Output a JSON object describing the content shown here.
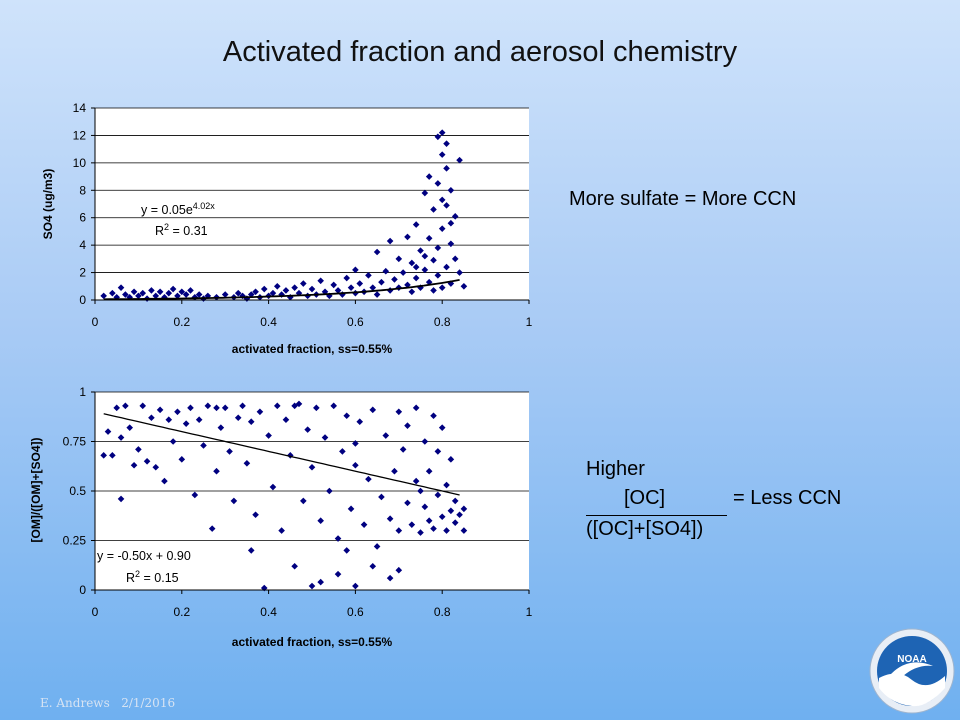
{
  "slide": {
    "title": "Activated fraction and aerosol chemistry",
    "footer_author": "E. Andrews",
    "footer_date": "2/1/2016",
    "logo_text": "NOAA"
  },
  "notes": {
    "sulfate": "More sulfate = More CCN",
    "higher": "Higher",
    "numerator": "[OC]",
    "denominator": "([OC]+[SO4])",
    "result": "= Less CCN"
  },
  "chart_data": [
    {
      "type": "scatter",
      "xlabel": "activated fraction, ss=0.55%",
      "ylabel": "SO4 (ug/m3)",
      "xlim": [
        0,
        1
      ],
      "ylim": [
        0,
        14
      ],
      "xticks": [
        "0",
        "0.2",
        "0.4",
        "0.6",
        "0.8",
        "1"
      ],
      "yticks": [
        "0",
        "2",
        "4",
        "6",
        "8",
        "10",
        "12",
        "14"
      ],
      "grid": "horizontal",
      "marker_color": "#000080",
      "trendline": {
        "kind": "exponential",
        "a": 0.05,
        "b": 4.02,
        "x_range": [
          0.02,
          0.84
        ],
        "equation_prefix": "y = 0.05e",
        "equation_exponent": "4.02x",
        "r2_prefix": "R",
        "r2_suffix": " = 0.31"
      },
      "points": [
        [
          0.02,
          0.3
        ],
        [
          0.04,
          0.5
        ],
        [
          0.05,
          0.2
        ],
        [
          0.06,
          0.9
        ],
        [
          0.07,
          0.4
        ],
        [
          0.08,
          0.2
        ],
        [
          0.09,
          0.6
        ],
        [
          0.1,
          0.3
        ],
        [
          0.11,
          0.5
        ],
        [
          0.12,
          0.1
        ],
        [
          0.13,
          0.7
        ],
        [
          0.14,
          0.3
        ],
        [
          0.15,
          0.6
        ],
        [
          0.16,
          0.2
        ],
        [
          0.17,
          0.5
        ],
        [
          0.18,
          0.8
        ],
        [
          0.19,
          0.3
        ],
        [
          0.2,
          0.6
        ],
        [
          0.21,
          0.4
        ],
        [
          0.22,
          0.7
        ],
        [
          0.23,
          0.2
        ],
        [
          0.24,
          0.4
        ],
        [
          0.25,
          0.1
        ],
        [
          0.26,
          0.3
        ],
        [
          0.28,
          0.2
        ],
        [
          0.3,
          0.4
        ],
        [
          0.32,
          0.2
        ],
        [
          0.33,
          0.5
        ],
        [
          0.34,
          0.3
        ],
        [
          0.35,
          0.1
        ],
        [
          0.36,
          0.4
        ],
        [
          0.37,
          0.6
        ],
        [
          0.38,
          0.2
        ],
        [
          0.39,
          0.8
        ],
        [
          0.4,
          0.3
        ],
        [
          0.41,
          0.5
        ],
        [
          0.42,
          1.0
        ],
        [
          0.43,
          0.4
        ],
        [
          0.44,
          0.7
        ],
        [
          0.45,
          0.2
        ],
        [
          0.46,
          0.9
        ],
        [
          0.47,
          0.5
        ],
        [
          0.48,
          1.2
        ],
        [
          0.49,
          0.3
        ],
        [
          0.5,
          0.8
        ],
        [
          0.51,
          0.4
        ],
        [
          0.52,
          1.4
        ],
        [
          0.53,
          0.6
        ],
        [
          0.54,
          0.3
        ],
        [
          0.55,
          1.1
        ],
        [
          0.56,
          0.7
        ],
        [
          0.57,
          0.4
        ],
        [
          0.58,
          1.6
        ],
        [
          0.59,
          0.9
        ],
        [
          0.6,
          0.5
        ],
        [
          0.6,
          2.2
        ],
        [
          0.61,
          1.2
        ],
        [
          0.62,
          0.6
        ],
        [
          0.63,
          1.8
        ],
        [
          0.64,
          0.9
        ],
        [
          0.65,
          0.4
        ],
        [
          0.65,
          3.5
        ],
        [
          0.66,
          1.3
        ],
        [
          0.67,
          2.1
        ],
        [
          0.68,
          0.7
        ],
        [
          0.68,
          4.3
        ],
        [
          0.69,
          1.5
        ],
        [
          0.7,
          0.9
        ],
        [
          0.7,
          3.0
        ],
        [
          0.71,
          2.0
        ],
        [
          0.72,
          1.1
        ],
        [
          0.72,
          4.6
        ],
        [
          0.73,
          0.6
        ],
        [
          0.73,
          2.7
        ],
        [
          0.74,
          1.6
        ],
        [
          0.74,
          5.5
        ],
        [
          0.75,
          0.9
        ],
        [
          0.75,
          3.6
        ],
        [
          0.76,
          2.2
        ],
        [
          0.76,
          7.8
        ],
        [
          0.77,
          1.3
        ],
        [
          0.77,
          4.5
        ],
        [
          0.77,
          9.0
        ],
        [
          0.78,
          0.7
        ],
        [
          0.78,
          2.9
        ],
        [
          0.78,
          6.6
        ],
        [
          0.79,
          1.8
        ],
        [
          0.79,
          3.8
        ],
        [
          0.79,
          8.5
        ],
        [
          0.8,
          0.9
        ],
        [
          0.8,
          5.2
        ],
        [
          0.8,
          10.6
        ],
        [
          0.8,
          12.2
        ],
        [
          0.81,
          2.4
        ],
        [
          0.81,
          6.9
        ],
        [
          0.81,
          9.6
        ],
        [
          0.82,
          1.2
        ],
        [
          0.82,
          4.1
        ],
        [
          0.82,
          8.0
        ],
        [
          0.83,
          3.0
        ],
        [
          0.83,
          6.1
        ],
        [
          0.84,
          2.0
        ],
        [
          0.84,
          10.2
        ],
        [
          0.85,
          1.0
        ],
        [
          0.81,
          11.4
        ],
        [
          0.79,
          11.9
        ],
        [
          0.8,
          7.3
        ],
        [
          0.82,
          5.6
        ],
        [
          0.76,
          3.2
        ],
        [
          0.74,
          2.4
        ]
      ]
    },
    {
      "type": "scatter",
      "xlabel": "activated fraction, ss=0.55%",
      "ylabel": "[OM]/([OM]+[SO4])",
      "xlim": [
        0,
        1
      ],
      "ylim": [
        0,
        1
      ],
      "xticks": [
        "0",
        "0.2",
        "0.4",
        "0.6",
        "0.8",
        "1"
      ],
      "yticks": [
        "0",
        "0.25",
        "0.5",
        "0.75",
        "1"
      ],
      "grid": "horizontal",
      "marker_color": "#000080",
      "trendline": {
        "kind": "linear",
        "m": -0.5,
        "b": 0.9,
        "x_range": [
          0.02,
          0.84
        ],
        "equation": "y = -0.50x + 0.90",
        "r2_prefix": "R",
        "r2_suffix": " = 0.15"
      },
      "points": [
        [
          0.02,
          0.68
        ],
        [
          0.03,
          0.8
        ],
        [
          0.04,
          0.68
        ],
        [
          0.05,
          0.92
        ],
        [
          0.06,
          0.46
        ],
        [
          0.06,
          0.77
        ],
        [
          0.07,
          0.93
        ],
        [
          0.08,
          0.82
        ],
        [
          0.09,
          0.63
        ],
        [
          0.1,
          0.71
        ],
        [
          0.11,
          0.93
        ],
        [
          0.12,
          0.65
        ],
        [
          0.13,
          0.87
        ],
        [
          0.14,
          0.62
        ],
        [
          0.15,
          0.91
        ],
        [
          0.16,
          0.55
        ],
        [
          0.17,
          0.86
        ],
        [
          0.18,
          0.75
        ],
        [
          0.19,
          0.9
        ],
        [
          0.2,
          0.66
        ],
        [
          0.21,
          0.84
        ],
        [
          0.22,
          0.92
        ],
        [
          0.23,
          0.48
        ],
        [
          0.24,
          0.86
        ],
        [
          0.25,
          0.73
        ],
        [
          0.26,
          0.93
        ],
        [
          0.27,
          0.31
        ],
        [
          0.28,
          0.6
        ],
        [
          0.29,
          0.82
        ],
        [
          0.3,
          0.92
        ],
        [
          0.31,
          0.7
        ],
        [
          0.32,
          0.45
        ],
        [
          0.33,
          0.87
        ],
        [
          0.34,
          0.93
        ],
        [
          0.35,
          0.64
        ],
        [
          0.36,
          0.2
        ],
        [
          0.37,
          0.38
        ],
        [
          0.38,
          0.9
        ],
        [
          0.39,
          0.01
        ],
        [
          0.4,
          0.78
        ],
        [
          0.41,
          0.52
        ],
        [
          0.42,
          0.93
        ],
        [
          0.43,
          0.3
        ],
        [
          0.44,
          0.86
        ],
        [
          0.45,
          0.68
        ],
        [
          0.46,
          0.12
        ],
        [
          0.47,
          0.94
        ],
        [
          0.48,
          0.45
        ],
        [
          0.49,
          0.81
        ],
        [
          0.5,
          0.02
        ],
        [
          0.5,
          0.62
        ],
        [
          0.51,
          0.92
        ],
        [
          0.52,
          0.35
        ],
        [
          0.53,
          0.77
        ],
        [
          0.54,
          0.5
        ],
        [
          0.55,
          0.93
        ],
        [
          0.56,
          0.26
        ],
        [
          0.57,
          0.7
        ],
        [
          0.58,
          0.88
        ],
        [
          0.59,
          0.41
        ],
        [
          0.6,
          0.02
        ],
        [
          0.6,
          0.63
        ],
        [
          0.61,
          0.85
        ],
        [
          0.62,
          0.33
        ],
        [
          0.63,
          0.56
        ],
        [
          0.64,
          0.91
        ],
        [
          0.65,
          0.22
        ],
        [
          0.66,
          0.47
        ],
        [
          0.67,
          0.78
        ],
        [
          0.68,
          0.36
        ],
        [
          0.68,
          0.06
        ],
        [
          0.69,
          0.6
        ],
        [
          0.7,
          0.9
        ],
        [
          0.7,
          0.3
        ],
        [
          0.71,
          0.71
        ],
        [
          0.72,
          0.44
        ],
        [
          0.72,
          0.83
        ],
        [
          0.73,
          0.33
        ],
        [
          0.74,
          0.55
        ],
        [
          0.74,
          0.92
        ],
        [
          0.75,
          0.29
        ],
        [
          0.76,
          0.42
        ],
        [
          0.76,
          0.75
        ],
        [
          0.77,
          0.35
        ],
        [
          0.77,
          0.6
        ],
        [
          0.78,
          0.88
        ],
        [
          0.78,
          0.31
        ],
        [
          0.79,
          0.48
        ],
        [
          0.79,
          0.7
        ],
        [
          0.8,
          0.37
        ],
        [
          0.8,
          0.82
        ],
        [
          0.81,
          0.3
        ],
        [
          0.81,
          0.53
        ],
        [
          0.82,
          0.4
        ],
        [
          0.82,
          0.66
        ],
        [
          0.83,
          0.34
        ],
        [
          0.83,
          0.45
        ],
        [
          0.84,
          0.38
        ],
        [
          0.85,
          0.3
        ],
        [
          0.85,
          0.41
        ],
        [
          0.64,
          0.12
        ],
        [
          0.56,
          0.08
        ],
        [
          0.52,
          0.04
        ],
        [
          0.7,
          0.1
        ],
        [
          0.58,
          0.2
        ],
        [
          0.46,
          0.93
        ],
        [
          0.36,
          0.85
        ],
        [
          0.28,
          0.92
        ],
        [
          0.6,
          0.74
        ],
        [
          0.75,
          0.5
        ]
      ]
    }
  ]
}
